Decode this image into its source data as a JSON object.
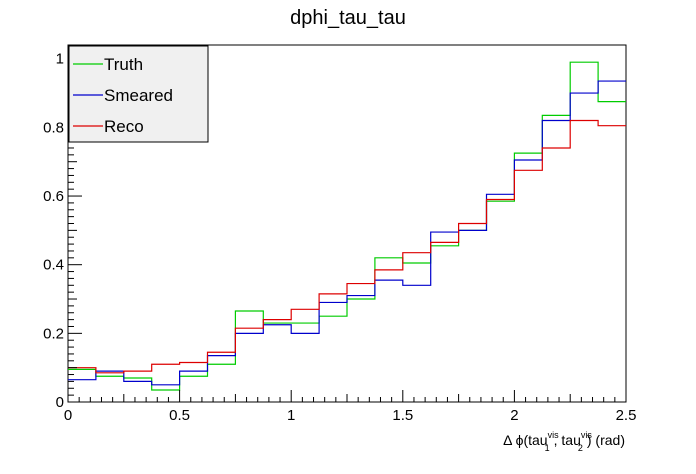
{
  "chart_data": {
    "type": "line",
    "title": "dphi_tau_tau",
    "xlabel": {
      "prefix": "Δ ϕ(tau",
      "sub1": "1",
      "sup1": "vis",
      "mid": ", tau",
      "sub2": "2",
      "sup2": "vis",
      "suffix": ") (rad)"
    },
    "ylabel": "",
    "xlim": [
      0,
      2.5
    ],
    "ylim": [
      0,
      1.04
    ],
    "x_ticks": [
      {
        "value": 0,
        "label": "0"
      },
      {
        "value": 0.5,
        "label": "0.5"
      },
      {
        "value": 1,
        "label": "1"
      },
      {
        "value": 1.5,
        "label": "1.5"
      },
      {
        "value": 2,
        "label": "2"
      },
      {
        "value": 2.5,
        "label": "2.5"
      }
    ],
    "y_ticks": [
      {
        "value": 0,
        "label": "0"
      },
      {
        "value": 0.2,
        "label": "0.2"
      },
      {
        "value": 0.4,
        "label": "0.4"
      },
      {
        "value": 0.6,
        "label": "0.6"
      },
      {
        "value": 0.8,
        "label": "0.8"
      },
      {
        "value": 1,
        "label": "1"
      }
    ],
    "bin_edges": [
      0,
      0.125,
      0.25,
      0.375,
      0.5,
      0.625,
      0.75,
      0.875,
      1.0,
      1.125,
      1.25,
      1.375,
      1.5,
      1.625,
      1.75,
      1.875,
      2.0,
      2.125,
      2.25,
      2.375,
      2.5
    ],
    "series": [
      {
        "name": "Truth",
        "color": "#00cc00",
        "values": [
          0.095,
          0.075,
          0.07,
          0.035,
          0.075,
          0.11,
          0.265,
          0.23,
          0.23,
          0.25,
          0.3,
          0.42,
          0.405,
          0.455,
          0.5,
          0.585,
          0.725,
          0.835,
          0.99,
          0.875
        ]
      },
      {
        "name": "Smeared",
        "color": "#0000cc",
        "values": [
          0.065,
          0.09,
          0.06,
          0.05,
          0.09,
          0.135,
          0.2,
          0.225,
          0.2,
          0.29,
          0.31,
          0.355,
          0.34,
          0.495,
          0.5,
          0.605,
          0.705,
          0.82,
          0.9,
          0.935
        ]
      },
      {
        "name": "Reco",
        "color": "#dd0000",
        "values": [
          0.1,
          0.085,
          0.09,
          0.11,
          0.115,
          0.145,
          0.215,
          0.24,
          0.27,
          0.315,
          0.345,
          0.385,
          0.435,
          0.465,
          0.52,
          0.59,
          0.675,
          0.74,
          0.82,
          0.805
        ]
      }
    ],
    "legend_position": "top-left",
    "grid": false
  }
}
